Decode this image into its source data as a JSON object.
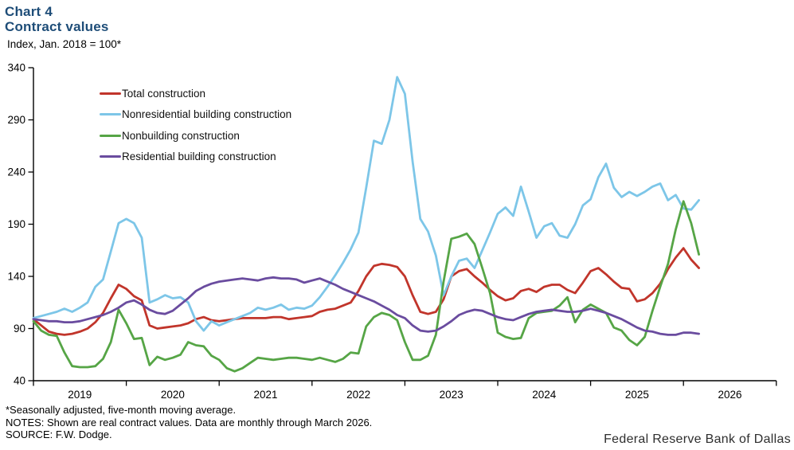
{
  "header": {
    "title_line1": "Chart 4",
    "title_line2": "Contract values",
    "unit_label": "Index, Jan. 2018 = 100*"
  },
  "footnotes": {
    "line1": "*Seasonally adjusted, five-month moving average.",
    "line2": "NOTES: Shown are real contract values. Data are monthly through March 2026.",
    "line3": "SOURCE: F.W. Dodge."
  },
  "branding": "Federal Reserve Bank of Dallas",
  "colors": {
    "title": "#1e4d78",
    "axis": "#000000",
    "total": "#c1352b",
    "nonresidential": "#7dc6e8",
    "nonbuilding": "#56a546",
    "residential": "#6a4c9f"
  },
  "chart_data": {
    "type": "line",
    "title": "Chart 4 — Contract values",
    "ylabel": "Index, Jan. 2018 = 100*",
    "x_unit": "month",
    "x_start": "2019-01",
    "x_end": "2026-03",
    "x_tick_labels": [
      "2019",
      "2020",
      "2021",
      "2022",
      "2023",
      "2024",
      "2025",
      "2026"
    ],
    "ylim": [
      40,
      340
    ],
    "yticks": [
      40,
      90,
      140,
      190,
      240,
      290,
      340
    ],
    "grid": false,
    "legend_position": "top-left-inside",
    "series": [
      {
        "name": "Total construction",
        "color": "#c1352b",
        "values": [
          99,
          93,
          87,
          85,
          84,
          85,
          87,
          90,
          96,
          105,
          119,
          132,
          128,
          121,
          117,
          93,
          90,
          91,
          92,
          93,
          95,
          99,
          101,
          98,
          97,
          98,
          99,
          100,
          100,
          100,
          100,
          101,
          101,
          99,
          100,
          101,
          102,
          106,
          108,
          109,
          112,
          115,
          126,
          140,
          150,
          152,
          151,
          149,
          140,
          122,
          106,
          104,
          106,
          118,
          140,
          145,
          147,
          140,
          134,
          127,
          121,
          117,
          119,
          126,
          128,
          125,
          130,
          132,
          132,
          127,
          124,
          134,
          145,
          148,
          142,
          135,
          129,
          128,
          116,
          118,
          124,
          133,
          147,
          158,
          167,
          156,
          148
        ]
      },
      {
        "name": "Nonresidential building construction",
        "color": "#7dc6e8",
        "values": [
          100,
          102,
          104,
          106,
          109,
          106,
          110,
          115,
          130,
          137,
          164,
          191,
          195,
          191,
          177,
          115,
          118,
          122,
          119,
          120,
          115,
          97,
          88,
          97,
          93,
          96,
          99,
          102,
          105,
          110,
          108,
          110,
          113,
          108,
          110,
          109,
          112,
          120,
          130,
          141,
          153,
          166,
          182,
          225,
          270,
          267,
          290,
          331,
          315,
          250,
          195,
          183,
          160,
          122,
          140,
          155,
          157,
          148,
          165,
          182,
          200,
          206,
          198,
          226,
          202,
          177,
          188,
          191,
          179,
          177,
          190,
          208,
          214,
          235,
          248,
          225,
          216,
          221,
          217,
          221,
          226,
          229,
          213,
          218,
          205,
          204,
          213
        ]
      },
      {
        "name": "Nonbuilding construction",
        "color": "#56a546",
        "values": [
          97,
          88,
          84,
          83,
          67,
          54,
          53,
          53,
          54,
          61,
          77,
          108,
          95,
          80,
          81,
          55,
          63,
          60,
          62,
          65,
          77,
          74,
          73,
          64,
          60,
          52,
          49,
          52,
          57,
          62,
          61,
          60,
          61,
          62,
          62,
          61,
          60,
          62,
          60,
          58,
          61,
          67,
          66,
          92,
          101,
          105,
          103,
          98,
          77,
          60,
          60,
          64,
          84,
          135,
          176,
          178,
          181,
          171,
          148,
          124,
          86,
          82,
          80,
          81,
          100,
          105,
          106,
          107,
          112,
          120,
          96,
          108,
          113,
          109,
          105,
          91,
          88,
          79,
          74,
          82,
          107,
          130,
          152,
          185,
          212,
          191,
          161
        ]
      },
      {
        "name": "Residential building construction",
        "color": "#6a4c9f",
        "values": [
          99,
          98,
          97,
          97,
          96,
          96,
          97,
          99,
          101,
          103,
          106,
          110,
          115,
          117,
          113,
          108,
          105,
          104,
          107,
          113,
          119,
          126,
          130,
          133,
          135,
          136,
          137,
          138,
          137,
          136,
          138,
          139,
          138,
          138,
          137,
          134,
          136,
          138,
          135,
          132,
          128,
          125,
          122,
          119,
          116,
          112,
          108,
          103,
          100,
          93,
          88,
          87,
          88,
          92,
          97,
          103,
          106,
          108,
          107,
          104,
          101,
          99,
          98,
          101,
          104,
          106,
          107,
          108,
          107,
          106,
          106,
          107,
          109,
          107,
          105,
          102,
          99,
          95,
          91,
          88,
          87,
          85,
          84,
          84,
          86,
          86,
          85
        ]
      }
    ]
  }
}
